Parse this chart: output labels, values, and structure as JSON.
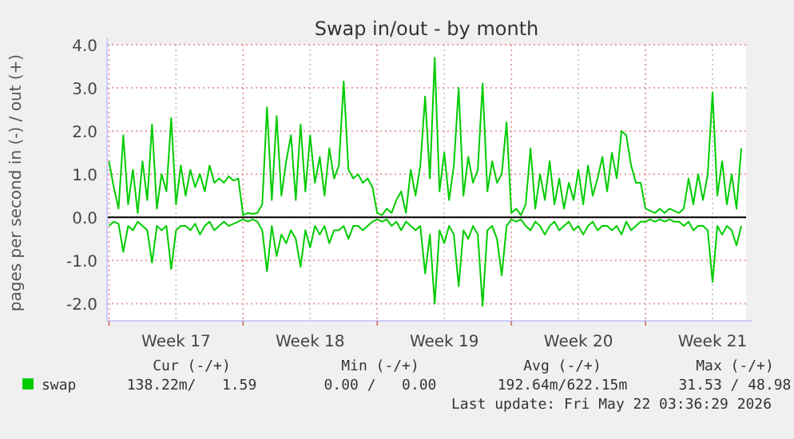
{
  "chart_data": {
    "type": "line",
    "title": "Swap in/out - by month",
    "ylabel": "pages per second in (-) / out (+)",
    "x": [
      "2026-04-20T00:00",
      "2026-04-20T06:00",
      "2026-04-20T12:00",
      "2026-04-20T18:00",
      "2026-04-21T00:00",
      "2026-04-21T06:00",
      "2026-04-21T12:00",
      "2026-04-21T18:00",
      "2026-04-22T00:00",
      "2026-04-22T06:00",
      "2026-04-22T12:00",
      "2026-04-22T18:00",
      "2026-04-23T00:00",
      "2026-04-23T06:00",
      "2026-04-23T12:00",
      "2026-04-23T18:00",
      "2026-04-24T00:00",
      "2026-04-24T06:00",
      "2026-04-24T12:00",
      "2026-04-24T18:00",
      "2026-04-25T00:00",
      "2026-04-25T06:00",
      "2026-04-25T12:00",
      "2026-04-25T18:00",
      "2026-04-26T00:00",
      "2026-04-26T06:00",
      "2026-04-26T12:00",
      "2026-04-26T18:00",
      "2026-04-27T00:00",
      "2026-04-27T06:00",
      "2026-04-27T12:00",
      "2026-04-27T18:00",
      "2026-04-28T00:00",
      "2026-04-28T06:00",
      "2026-04-28T12:00",
      "2026-04-28T18:00",
      "2026-04-29T00:00",
      "2026-04-29T06:00",
      "2026-04-29T12:00",
      "2026-04-29T18:00",
      "2026-04-30T00:00",
      "2026-04-30T06:00",
      "2026-04-30T12:00",
      "2026-04-30T18:00",
      "2026-05-01T00:00",
      "2026-05-01T06:00",
      "2026-05-01T12:00",
      "2026-05-01T18:00",
      "2026-05-02T00:00",
      "2026-05-02T06:00",
      "2026-05-02T12:00",
      "2026-05-02T18:00",
      "2026-05-03T00:00",
      "2026-05-03T06:00",
      "2026-05-03T12:00",
      "2026-05-03T18:00",
      "2026-05-04T00:00",
      "2026-05-04T06:00",
      "2026-05-04T12:00",
      "2026-05-04T18:00",
      "2026-05-05T00:00",
      "2026-05-05T06:00",
      "2026-05-05T12:00",
      "2026-05-05T18:00",
      "2026-05-06T00:00",
      "2026-05-06T06:00",
      "2026-05-06T12:00",
      "2026-05-06T18:00",
      "2026-05-07T00:00",
      "2026-05-07T06:00",
      "2026-05-07T12:00",
      "2026-05-07T18:00",
      "2026-05-08T00:00",
      "2026-05-08T06:00",
      "2026-05-08T12:00",
      "2026-05-08T18:00",
      "2026-05-09T00:00",
      "2026-05-09T06:00",
      "2026-05-09T12:00",
      "2026-05-09T18:00",
      "2026-05-10T00:00",
      "2026-05-10T06:00",
      "2026-05-10T12:00",
      "2026-05-10T18:00",
      "2026-05-11T00:00",
      "2026-05-11T06:00",
      "2026-05-11T12:00",
      "2026-05-11T18:00",
      "2026-05-12T00:00",
      "2026-05-12T06:00",
      "2026-05-12T12:00",
      "2026-05-12T18:00",
      "2026-05-13T00:00",
      "2026-05-13T06:00",
      "2026-05-13T12:00",
      "2026-05-13T18:00",
      "2026-05-14T00:00",
      "2026-05-14T06:00",
      "2026-05-14T12:00",
      "2026-05-14T18:00",
      "2026-05-15T00:00",
      "2026-05-15T06:00",
      "2026-05-15T12:00",
      "2026-05-15T18:00",
      "2026-05-16T00:00",
      "2026-05-16T06:00",
      "2026-05-16T12:00",
      "2026-05-16T18:00",
      "2026-05-17T00:00",
      "2026-05-17T06:00",
      "2026-05-17T12:00",
      "2026-05-17T18:00",
      "2026-05-18T00:00",
      "2026-05-18T06:00",
      "2026-05-18T12:00",
      "2026-05-18T18:00",
      "2026-05-19T00:00",
      "2026-05-19T06:00",
      "2026-05-19T12:00",
      "2026-05-19T18:00",
      "2026-05-20T00:00",
      "2026-05-20T06:00",
      "2026-05-20T12:00",
      "2026-05-20T18:00",
      "2026-05-21T00:00",
      "2026-05-21T06:00",
      "2026-05-21T12:00",
      "2026-05-21T18:00",
      "2026-05-22T00:00",
      "2026-05-22T06:00",
      "2026-05-22T12:00",
      "2026-05-22T18:00",
      "2026-05-23T00:00"
    ],
    "series": [
      {
        "name": "swap",
        "color": "#00cc00",
        "values": [
          1.3,
          0.7,
          0.2,
          1.9,
          0.3,
          1.1,
          0.1,
          1.3,
          0.4,
          2.15,
          0.2,
          1.0,
          0.6,
          2.3,
          0.3,
          1.2,
          0.5,
          1.1,
          0.7,
          1.0,
          0.6,
          1.2,
          0.8,
          0.9,
          0.8,
          0.95,
          0.85,
          0.9,
          0.05,
          0.1,
          0.08,
          0.1,
          0.3,
          2.55,
          0.4,
          2.35,
          0.5,
          1.3,
          1.9,
          0.4,
          2.15,
          0.6,
          1.9,
          0.8,
          1.4,
          0.5,
          1.6,
          0.9,
          1.2,
          3.15,
          1.1,
          0.9,
          1.0,
          0.8,
          0.9,
          0.7,
          0.1,
          0.05,
          0.2,
          0.1,
          0.4,
          0.6,
          0.1,
          1.1,
          0.5,
          1.2,
          2.8,
          0.9,
          3.7,
          0.6,
          1.5,
          0.4,
          1.2,
          3.0,
          0.5,
          1.4,
          0.8,
          1.1,
          3.1,
          0.6,
          1.3,
          0.8,
          1.0,
          2.2,
          0.1,
          0.2,
          0.05,
          0.3,
          1.6,
          0.2,
          1.0,
          0.4,
          1.3,
          0.3,
          0.9,
          0.2,
          0.8,
          0.4,
          1.1,
          0.3,
          1.2,
          0.5,
          0.9,
          1.4,
          0.6,
          1.5,
          0.9,
          2.0,
          1.9,
          1.2,
          0.8,
          0.8,
          0.2,
          0.15,
          0.1,
          0.2,
          0.1,
          0.2,
          0.15,
          0.1,
          0.2,
          0.9,
          0.3,
          1.0,
          0.4,
          1.0,
          2.9,
          0.5,
          1.3,
          0.3,
          1.0,
          0.2,
          1.6
        ]
      },
      {
        "color": "#00cc00",
        "values": [
          -0.2,
          -0.1,
          -0.15,
          -0.8,
          -0.2,
          -0.3,
          -0.1,
          -0.2,
          -0.3,
          -1.05,
          -0.2,
          -0.3,
          -0.2,
          -1.2,
          -0.3,
          -0.2,
          -0.2,
          -0.3,
          -0.15,
          -0.4,
          -0.2,
          -0.1,
          -0.3,
          -0.2,
          -0.1,
          -0.2,
          -0.15,
          -0.1,
          -0.05,
          -0.1,
          -0.05,
          -0.1,
          -0.3,
          -1.25,
          -0.2,
          -0.9,
          -0.4,
          -0.6,
          -0.3,
          -0.5,
          -1.15,
          -0.3,
          -0.7,
          -0.2,
          -0.4,
          -0.2,
          -0.6,
          -0.3,
          -0.3,
          -0.2,
          -0.5,
          -0.2,
          -0.2,
          -0.3,
          -0.2,
          -0.1,
          -0.05,
          -0.1,
          -0.05,
          -0.2,
          -0.1,
          -0.3,
          -0.1,
          -0.2,
          -0.3,
          -0.2,
          -1.3,
          -0.4,
          -2.0,
          -0.3,
          -0.6,
          -0.2,
          -0.4,
          -1.6,
          -0.3,
          -0.5,
          -0.2,
          -0.4,
          -2.05,
          -0.3,
          -0.2,
          -0.5,
          -1.35,
          -0.2,
          -0.05,
          -0.1,
          -0.05,
          -0.2,
          -0.3,
          -0.1,
          -0.2,
          -0.4,
          -0.2,
          -0.1,
          -0.3,
          -0.2,
          -0.1,
          -0.3,
          -0.2,
          -0.4,
          -0.2,
          -0.1,
          -0.3,
          -0.2,
          -0.2,
          -0.3,
          -0.2,
          -0.4,
          -0.1,
          -0.3,
          -0.2,
          -0.1,
          -0.1,
          -0.05,
          -0.1,
          -0.05,
          -0.1,
          -0.05,
          -0.1,
          -0.1,
          -0.2,
          -0.1,
          -0.3,
          -0.2,
          -0.2,
          -0.3,
          -1.5,
          -0.2,
          -0.4,
          -0.2,
          -0.3,
          -0.65,
          -0.2
        ]
      }
    ],
    "xlim": [
      "2026-04-19T21:36",
      "2026-05-23T06:00"
    ],
    "xticks": [
      {
        "value": "2026-04-20T00:00",
        "label": null
      },
      {
        "value": "2026-04-23T12:00",
        "label": "Week 17"
      },
      {
        "value": "2026-04-27T00:00",
        "label": null
      },
      {
        "value": "2026-04-30T12:00",
        "label": "Week 18"
      },
      {
        "value": "2026-05-04T00:00",
        "label": null
      },
      {
        "value": "2026-05-07T12:00",
        "label": "Week 19"
      },
      {
        "value": "2026-05-11T00:00",
        "label": null
      },
      {
        "value": "2026-05-14T12:00",
        "label": "Week 20"
      },
      {
        "value": "2026-05-18T00:00",
        "label": null
      },
      {
        "value": "2026-05-21T12:00",
        "label": "Week 21"
      }
    ],
    "ylim": [
      -2.4,
      4.0
    ],
    "yticks": [
      {
        "value": -2,
        "label": "-2.0"
      },
      {
        "value": -1,
        "label": "-1.0"
      },
      {
        "value": 0,
        "label": "0.0"
      },
      {
        "value": 1,
        "label": "1.0"
      },
      {
        "value": 2,
        "label": "2.0"
      },
      {
        "value": 3,
        "label": "3.0"
      },
      {
        "value": 4,
        "label": "4.0"
      }
    ],
    "grid": true,
    "legend": "bottom left",
    "marker": "none",
    "line_style": "solid",
    "ref_lines": [
      {
        "axis": "y",
        "value": 0,
        "color": "#000000"
      }
    ],
    "annotations": [
      "Cur (-/+)",
      "Min (-/+)",
      "Avg (-/+)",
      "Max (-/+)",
      "138.22m/   1.59",
      "0.00 /   0.00",
      "192.64m/622.15m",
      "31.53 / 48.98",
      "Last update: Fri May 22 03:36:29 2026"
    ]
  }
}
